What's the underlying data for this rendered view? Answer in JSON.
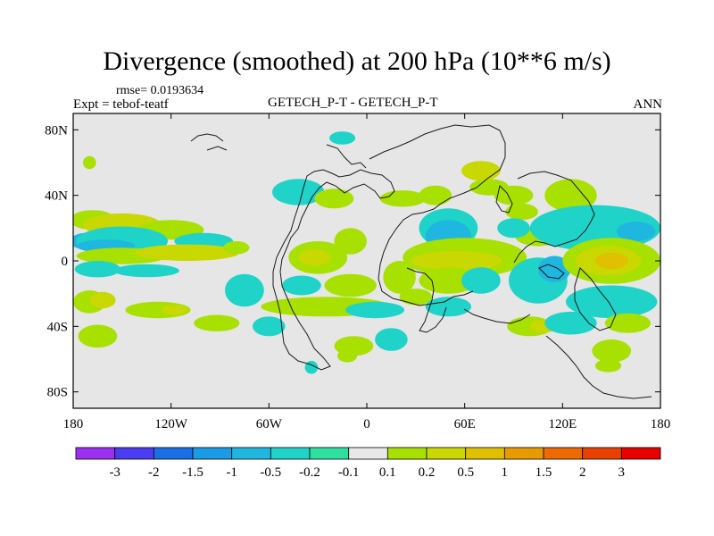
{
  "header": {
    "title": "Divergence (smoothed) at 200 hPa (10**6 m/s)",
    "rmse": "rmse= 0.0193634",
    "expt": "Expt = tebof-teatf",
    "center": "GETECH_P-T - GETECH_P-T",
    "season": "ANN"
  },
  "chart_data": {
    "type": "heatmap",
    "title": "Divergence (smoothed) at 200 hPa (10**6 m/s)",
    "xlabel": "",
    "ylabel": "",
    "xlim": [
      -180,
      180
    ],
    "ylim": [
      -90,
      90
    ],
    "x_ticks": [
      {
        "value": -180,
        "label": "180"
      },
      {
        "value": -120,
        "label": "120W"
      },
      {
        "value": -60,
        "label": "60W"
      },
      {
        "value": 0,
        "label": "0"
      },
      {
        "value": 60,
        "label": "60E"
      },
      {
        "value": 120,
        "label": "120E"
      },
      {
        "value": 180,
        "label": "180"
      }
    ],
    "y_ticks": [
      {
        "value": 80,
        "label": "80N"
      },
      {
        "value": 40,
        "label": "40N"
      },
      {
        "value": 0,
        "label": "0"
      },
      {
        "value": -40,
        "label": "40S"
      },
      {
        "value": -80,
        "label": "80S"
      }
    ],
    "colorbar": {
      "labels": [
        "-3",
        "-2",
        "-1.5",
        "-1",
        "-0.5",
        "-0.2",
        "-0.1",
        "0.1",
        "0.2",
        "0.5",
        "1",
        "1.5",
        "2",
        "3"
      ],
      "colors": [
        "#9b30f0",
        "#4a3cf0",
        "#1a6fe6",
        "#1a9be6",
        "#1fb7e0",
        "#1fd3c8",
        "#2ee0a0",
        "#e8e8e8",
        "#a8e000",
        "#c8d800",
        "#e0c000",
        "#e89a00",
        "#ec6a00",
        "#e84000",
        "#e80000"
      ]
    },
    "patches": [
      {
        "lon": -168,
        "lat": 25,
        "rx": 14,
        "ry": 6,
        "level": 0.2
      },
      {
        "lon": -150,
        "lat": 22,
        "rx": 24,
        "ry": 7,
        "level": 0.5
      },
      {
        "lon": -120,
        "lat": 19,
        "rx": 20,
        "ry": 6,
        "level": 0.2
      },
      {
        "lon": -172,
        "lat": 12,
        "rx": 10,
        "ry": 5,
        "level": -0.5
      },
      {
        "lon": -150,
        "lat": 12,
        "rx": 28,
        "ry": 9,
        "level": -0.2
      },
      {
        "lon": -100,
        "lat": 12,
        "rx": 18,
        "ry": 5,
        "level": -0.2
      },
      {
        "lon": -160,
        "lat": 9,
        "rx": 18,
        "ry": 4,
        "level": -0.5
      },
      {
        "lon": -150,
        "lat": 3,
        "rx": 28,
        "ry": 5,
        "level": 0.2
      },
      {
        "lon": -110,
        "lat": 5,
        "rx": 32,
        "ry": 5,
        "level": 0.5
      },
      {
        "lon": -80,
        "lat": 8,
        "rx": 8,
        "ry": 4,
        "level": 0.2
      },
      {
        "lon": -165,
        "lat": -5,
        "rx": 14,
        "ry": 5,
        "level": -0.2
      },
      {
        "lon": -135,
        "lat": -6,
        "rx": 20,
        "ry": 4,
        "level": -0.2
      },
      {
        "lon": -170,
        "lat": -25,
        "rx": 10,
        "ry": 7,
        "level": 0.2
      },
      {
        "lon": -162,
        "lat": -24,
        "rx": 8,
        "ry": 5,
        "level": 0.5
      },
      {
        "lon": -128,
        "lat": -30,
        "rx": 20,
        "ry": 5,
        "level": 0.2
      },
      {
        "lon": -118,
        "lat": -30,
        "rx": 8,
        "ry": 3,
        "level": 0.5
      },
      {
        "lon": -92,
        "lat": -38,
        "rx": 14,
        "ry": 5,
        "level": 0.2
      },
      {
        "lon": -165,
        "lat": -46,
        "rx": 12,
        "ry": 7,
        "level": 0.2
      },
      {
        "lon": -75,
        "lat": -18,
        "rx": 12,
        "ry": 10,
        "level": -0.2
      },
      {
        "lon": -60,
        "lat": -40,
        "rx": 10,
        "ry": 6,
        "level": -0.2
      },
      {
        "lon": -42,
        "lat": 42,
        "rx": 16,
        "ry": 8,
        "level": -0.2
      },
      {
        "lon": -20,
        "lat": 38,
        "rx": 12,
        "ry": 6,
        "level": 0.2
      },
      {
        "lon": -10,
        "lat": 12,
        "rx": 10,
        "ry": 8,
        "level": 0.2
      },
      {
        "lon": -30,
        "lat": 2,
        "rx": 18,
        "ry": 10,
        "level": 0.2
      },
      {
        "lon": -32,
        "lat": 2,
        "rx": 10,
        "ry": 5,
        "level": 0.5
      },
      {
        "lon": -40,
        "lat": -15,
        "rx": 12,
        "ry": 6,
        "level": -0.2
      },
      {
        "lon": -10,
        "lat": -15,
        "rx": 16,
        "ry": 7,
        "level": 0.2
      },
      {
        "lon": -25,
        "lat": -28,
        "rx": 40,
        "ry": 6,
        "level": 0.2
      },
      {
        "lon": 5,
        "lat": -30,
        "rx": 18,
        "ry": 5,
        "level": -0.2
      },
      {
        "lon": -8,
        "lat": -52,
        "rx": 12,
        "ry": 6,
        "level": 0.2
      },
      {
        "lon": 22,
        "lat": 38,
        "rx": 14,
        "ry": 5,
        "level": 0.2
      },
      {
        "lon": 20,
        "lat": -10,
        "rx": 10,
        "ry": 10,
        "level": 0.2
      },
      {
        "lon": 30,
        "lat": -22,
        "rx": 10,
        "ry": 5,
        "level": 0.2
      },
      {
        "lon": 15,
        "lat": -48,
        "rx": 10,
        "ry": 7,
        "level": -0.2
      },
      {
        "lon": -12,
        "lat": -58,
        "rx": 6,
        "ry": 4,
        "level": 0.2
      },
      {
        "lon": -34,
        "lat": -65,
        "rx": 4,
        "ry": 4,
        "level": -0.2
      },
      {
        "lon": 50,
        "lat": 20,
        "rx": 18,
        "ry": 12,
        "level": -0.2
      },
      {
        "lon": 50,
        "lat": 15,
        "rx": 14,
        "ry": 10,
        "level": -0.5
      },
      {
        "lon": 60,
        "lat": 2,
        "rx": 38,
        "ry": 12,
        "level": 0.2
      },
      {
        "lon": 55,
        "lat": 0,
        "rx": 28,
        "ry": 6,
        "level": 0.5
      },
      {
        "lon": 50,
        "lat": -12,
        "rx": 18,
        "ry": 8,
        "level": 0.2
      },
      {
        "lon": 50,
        "lat": -28,
        "rx": 14,
        "ry": 6,
        "level": -0.2
      },
      {
        "lon": 70,
        "lat": -12,
        "rx": 12,
        "ry": 8,
        "level": -0.2
      },
      {
        "lon": 42,
        "lat": 40,
        "rx": 10,
        "ry": 6,
        "level": 0.2
      },
      {
        "lon": 75,
        "lat": 45,
        "rx": 12,
        "ry": 5,
        "level": 0.2
      },
      {
        "lon": 70,
        "lat": 55,
        "rx": 12,
        "ry": 6,
        "level": 0.5
      },
      {
        "lon": 90,
        "lat": 40,
        "rx": 12,
        "ry": 6,
        "level": 0.2
      },
      {
        "lon": 95,
        "lat": 30,
        "rx": 10,
        "ry": 5,
        "level": 0.2
      },
      {
        "lon": 105,
        "lat": 15,
        "rx": 14,
        "ry": 6,
        "level": 0.2
      },
      {
        "lon": 90,
        "lat": 20,
        "rx": 10,
        "ry": 6,
        "level": -0.2
      },
      {
        "lon": 105,
        "lat": -12,
        "rx": 18,
        "ry": 14,
        "level": -0.2
      },
      {
        "lon": 115,
        "lat": -5,
        "rx": 10,
        "ry": 8,
        "level": -0.5
      },
      {
        "lon": 100,
        "lat": -40,
        "rx": 14,
        "ry": 6,
        "level": 0.2
      },
      {
        "lon": 108,
        "lat": -40,
        "rx": 8,
        "ry": 4,
        "level": 0.5
      },
      {
        "lon": 125,
        "lat": -38,
        "rx": 16,
        "ry": 7,
        "level": -0.2
      },
      {
        "lon": 125,
        "lat": 40,
        "rx": 16,
        "ry": 10,
        "level": 0.2
      },
      {
        "lon": 140,
        "lat": 20,
        "rx": 40,
        "ry": 14,
        "level": -0.2
      },
      {
        "lon": 165,
        "lat": 18,
        "rx": 12,
        "ry": 6,
        "level": -0.5
      },
      {
        "lon": 150,
        "lat": 0,
        "rx": 30,
        "ry": 14,
        "level": 0.2
      },
      {
        "lon": 148,
        "lat": 0,
        "rx": 20,
        "ry": 9,
        "level": 0.5
      },
      {
        "lon": 150,
        "lat": 0,
        "rx": 10,
        "ry": 5,
        "level": 1
      },
      {
        "lon": 150,
        "lat": -25,
        "rx": 28,
        "ry": 10,
        "level": -0.2
      },
      {
        "lon": 160,
        "lat": -38,
        "rx": 14,
        "ry": 6,
        "level": 0.2
      },
      {
        "lon": 150,
        "lat": -55,
        "rx": 12,
        "ry": 7,
        "level": 0.2
      },
      {
        "lon": 148,
        "lat": -64,
        "rx": 8,
        "ry": 4,
        "level": 0.2
      },
      {
        "lon": -15,
        "lat": 75,
        "rx": 8,
        "ry": 4,
        "level": -0.2
      },
      {
        "lon": -170,
        "lat": 60,
        "rx": 4,
        "ry": 4,
        "level": 0.2
      }
    ]
  }
}
